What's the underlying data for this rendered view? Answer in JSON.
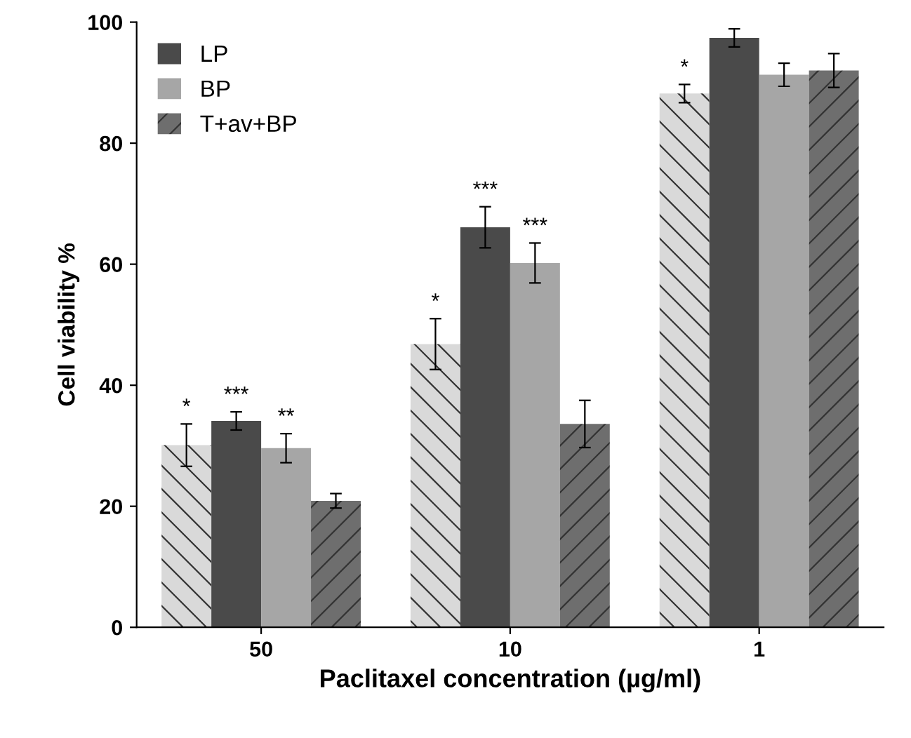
{
  "chart_data": {
    "type": "bar",
    "xlabel": "Paclitaxel concentration (µg/ml)",
    "ylabel": "Cell viability %",
    "categories": [
      "50",
      "10",
      "1"
    ],
    "series": [
      {
        "color": "#d9d9d9",
        "values": [
          30.1,
          46.8,
          88.2
        ],
        "errors": [
          3.5,
          4.2,
          1.5
        ],
        "value_labels": [
          "*",
          "*",
          "*"
        ]
      },
      {
        "name": "LP",
        "color": "#4a4a4a",
        "values": [
          34.1,
          66.1,
          97.4
        ],
        "errors": [
          1.5,
          3.4,
          1.5
        ],
        "value_labels": [
          "***",
          "***",
          null
        ]
      },
      {
        "name": "BP",
        "color": "#a6a6a6",
        "values": [
          29.6,
          60.2,
          91.3
        ],
        "errors": [
          2.4,
          3.3,
          1.9
        ],
        "value_labels": [
          "**",
          "***",
          null
        ]
      },
      {
        "name": "T+av+BP",
        "color": "#6e6e6e",
        "values": [
          20.9,
          33.6,
          92.0
        ],
        "errors": [
          1.2,
          3.9,
          2.8
        ]
      }
    ],
    "ylim": [
      0,
      100
    ],
    "yticks": [
      0,
      20,
      40,
      60,
      80,
      100
    ],
    "grid": false,
    "legend": "top left"
  }
}
